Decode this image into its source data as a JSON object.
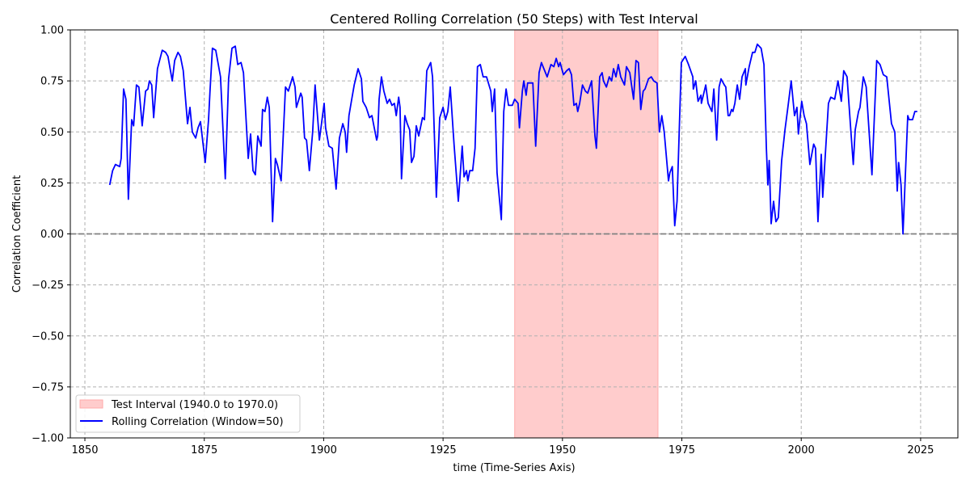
{
  "chart_data": {
    "type": "line",
    "title": "Centered Rolling Correlation (50 Steps) with Test Interval",
    "xlabel": "time (Time-Series Axis)",
    "ylabel": "Correlation Coefficient",
    "xlim": [
      1846.95,
      2032.8
    ],
    "ylim": [
      -1.0,
      1.0
    ],
    "xticks": [
      1850,
      1875,
      1900,
      1925,
      1950,
      1975,
      2000,
      2025
    ],
    "xtick_labels": [
      "1850",
      "1875",
      "1900",
      "1925",
      "1950",
      "1975",
      "2000",
      "2025"
    ],
    "yticks": [
      -1.0,
      -0.75,
      -0.5,
      -0.25,
      0.0,
      0.25,
      0.5,
      0.75,
      1.0
    ],
    "ytick_labels": [
      "−1.00",
      "−0.75",
      "−0.50",
      "−0.25",
      "0.00",
      "0.25",
      "0.50",
      "0.75",
      "1.00"
    ],
    "grid": true,
    "legend_position": "lower-left",
    "reference_line": {
      "y": 0.0,
      "color": "#808080",
      "style": "dashed"
    },
    "shaded_interval": {
      "label": "Test Interval (1940.0 to 1970.0)",
      "x_start": 1940.0,
      "x_end": 1970.0,
      "color": "#ffcccc"
    },
    "series": [
      {
        "name": "Rolling Correlation (Window=50)",
        "color": "#0000ff",
        "x": [
          1855.2,
          1855.8,
          1856.4,
          1857.3,
          1857.6,
          1858.1,
          1858.6,
          1859.1,
          1859.8,
          1860.2,
          1860.8,
          1861.3,
          1862.0,
          1862.7,
          1863.2,
          1863.5,
          1864.0,
          1864.4,
          1865.2,
          1866.2,
          1866.9,
          1867.4,
          1868.3,
          1868.8,
          1869.5,
          1870.0,
          1870.6,
          1871.5,
          1872.0,
          1872.5,
          1873.2,
          1873.7,
          1874.2,
          1875.2,
          1875.9,
          1876.2,
          1876.7,
          1877.4,
          1878.4,
          1879.4,
          1880.1,
          1880.8,
          1881.5,
          1882.0,
          1882.7,
          1883.2,
          1884.2,
          1884.7,
          1885.2,
          1885.7,
          1886.2,
          1886.9,
          1887.2,
          1887.7,
          1888.2,
          1888.6,
          1889.3,
          1889.9,
          1890.3,
          1891.1,
          1892.0,
          1892.6,
          1893.5,
          1894.0,
          1894.3,
          1895.2,
          1895.5,
          1896.0,
          1896.4,
          1897.0,
          1897.7,
          1898.2,
          1899.1,
          1900.1,
          1900.4,
          1901.1,
          1901.8,
          1902.6,
          1903.3,
          1904.0,
          1904.5,
          1904.8,
          1905.3,
          1905.8,
          1906.4,
          1907.2,
          1907.9,
          1908.2,
          1908.9,
          1909.6,
          1910.1,
          1910.6,
          1911.1,
          1911.3,
          1911.6,
          1912.1,
          1912.6,
          1913.3,
          1913.8,
          1914.3,
          1914.8,
          1915.2,
          1915.7,
          1916.0,
          1916.3,
          1917.0,
          1917.5,
          1918.0,
          1918.4,
          1918.9,
          1919.4,
          1919.9,
          1920.7,
          1921.1,
          1921.6,
          1922.4,
          1922.8,
          1923.6,
          1924.3,
          1925.0,
          1925.5,
          1926.0,
          1926.5,
          1927.3,
          1928.2,
          1929.0,
          1929.4,
          1929.9,
          1930.2,
          1930.6,
          1931.2,
          1931.7,
          1932.2,
          1932.8,
          1933.4,
          1934.1,
          1935.0,
          1935.3,
          1935.8,
          1936.3,
          1937.2,
          1937.7,
          1938.2,
          1938.7,
          1939.5,
          1940.0,
          1940.7,
          1941.0,
          1941.6,
          1941.9,
          1942.4,
          1942.7,
          1943.4,
          1943.8,
          1944.4,
          1945.1,
          1945.6,
          1946.1,
          1946.8,
          1947.6,
          1948.2,
          1948.7,
          1949.2,
          1949.5,
          1950.2,
          1950.9,
          1951.4,
          1951.9,
          1952.4,
          1952.9,
          1953.2,
          1953.6,
          1954.2,
          1954.8,
          1955.3,
          1956.1,
          1956.8,
          1957.1,
          1957.8,
          1958.3,
          1958.6,
          1959.2,
          1959.8,
          1960.3,
          1960.7,
          1961.2,
          1961.7,
          1962.2,
          1963.0,
          1963.4,
          1964.1,
          1964.9,
          1965.4,
          1965.9,
          1966.4,
          1966.9,
          1967.3,
          1968.0,
          1968.6,
          1969.1,
          1969.8,
          1970.3,
          1970.8,
          1971.3,
          1972.2,
          1972.5,
          1973.0,
          1973.5,
          1974.0,
          1974.9,
          1975.7,
          1976.4,
          1977.3,
          1977.4,
          1977.9,
          1978.4,
          1979.0,
          1979.1,
          1980.0,
          1980.5,
          1981.3,
          1981.7,
          1982.3,
          1982.8,
          1983.2,
          1983.9,
          1984.2,
          1984.7,
          1985.0,
          1985.4,
          1985.7,
          1986.1,
          1986.6,
          1987.1,
          1987.6,
          1988.3,
          1988.4,
          1989.1,
          1989.8,
          1990.3,
          1990.8,
          1991.6,
          1992.2,
          1992.7,
          1993.0,
          1993.3,
          1993.7,
          1994.2,
          1994.7,
          1995.2,
          1995.9,
          1996.6,
          1997.2,
          1997.9,
          1998.6,
          1999.1,
          1999.4,
          2000.1,
          2000.6,
          2001.1,
          2001.8,
          2002.6,
          2003.0,
          2003.5,
          2004.2,
          2004.5,
          2005.7,
          2006.2,
          2007.0,
          2007.7,
          2008.4,
          2008.9,
          2009.6,
          2010.4,
          2010.9,
          2011.3,
          2012.0,
          2012.3,
          2013.0,
          2013.6,
          2013.8,
          2014.8,
          2015.8,
          2016.5,
          2017.2,
          2017.9,
          2018.9,
          2019.6,
          2020.1,
          2020.4,
          2020.9,
          2021.3,
          2022.3,
          2022.6,
          2023.3,
          2023.8,
          2024.3
        ],
        "y": [
          0.24,
          0.31,
          0.34,
          0.33,
          0.37,
          0.71,
          0.66,
          0.17,
          0.56,
          0.53,
          0.73,
          0.72,
          0.53,
          0.7,
          0.71,
          0.75,
          0.73,
          0.57,
          0.81,
          0.9,
          0.89,
          0.87,
          0.75,
          0.85,
          0.89,
          0.87,
          0.8,
          0.54,
          0.62,
          0.5,
          0.47,
          0.52,
          0.55,
          0.35,
          0.56,
          0.7,
          0.91,
          0.9,
          0.77,
          0.27,
          0.76,
          0.91,
          0.92,
          0.83,
          0.84,
          0.79,
          0.37,
          0.49,
          0.31,
          0.29,
          0.48,
          0.43,
          0.61,
          0.6,
          0.67,
          0.62,
          0.06,
          0.37,
          0.34,
          0.26,
          0.72,
          0.7,
          0.77,
          0.72,
          0.62,
          0.69,
          0.67,
          0.47,
          0.46,
          0.31,
          0.5,
          0.73,
          0.46,
          0.64,
          0.52,
          0.43,
          0.42,
          0.22,
          0.47,
          0.54,
          0.5,
          0.4,
          0.58,
          0.65,
          0.73,
          0.81,
          0.76,
          0.65,
          0.62,
          0.57,
          0.58,
          0.52,
          0.46,
          0.48,
          0.66,
          0.77,
          0.7,
          0.64,
          0.66,
          0.63,
          0.64,
          0.58,
          0.67,
          0.62,
          0.27,
          0.58,
          0.54,
          0.51,
          0.35,
          0.38,
          0.53,
          0.48,
          0.57,
          0.56,
          0.8,
          0.84,
          0.77,
          0.18,
          0.57,
          0.62,
          0.56,
          0.6,
          0.72,
          0.44,
          0.16,
          0.43,
          0.28,
          0.31,
          0.26,
          0.31,
          0.31,
          0.42,
          0.82,
          0.83,
          0.77,
          0.77,
          0.7,
          0.6,
          0.71,
          0.3,
          0.07,
          0.6,
          0.71,
          0.63,
          0.63,
          0.66,
          0.64,
          0.52,
          0.7,
          0.75,
          0.68,
          0.74,
          0.74,
          0.74,
          0.43,
          0.79,
          0.84,
          0.81,
          0.77,
          0.83,
          0.82,
          0.86,
          0.82,
          0.84,
          0.78,
          0.8,
          0.81,
          0.78,
          0.63,
          0.64,
          0.6,
          0.64,
          0.73,
          0.7,
          0.69,
          0.75,
          0.48,
          0.42,
          0.77,
          0.79,
          0.75,
          0.72,
          0.77,
          0.75,
          0.81,
          0.77,
          0.83,
          0.77,
          0.73,
          0.82,
          0.79,
          0.66,
          0.85,
          0.84,
          0.61,
          0.7,
          0.71,
          0.76,
          0.77,
          0.75,
          0.74,
          0.5,
          0.58,
          0.5,
          0.26,
          0.3,
          0.33,
          0.04,
          0.16,
          0.84,
          0.87,
          0.83,
          0.77,
          0.71,
          0.75,
          0.65,
          0.68,
          0.64,
          0.73,
          0.64,
          0.6,
          0.71,
          0.46,
          0.72,
          0.76,
          0.73,
          0.72,
          0.58,
          0.58,
          0.61,
          0.6,
          0.64,
          0.73,
          0.66,
          0.77,
          0.81,
          0.73,
          0.82,
          0.89,
          0.89,
          0.93,
          0.91,
          0.83,
          0.42,
          0.24,
          0.36,
          0.05,
          0.16,
          0.06,
          0.08,
          0.36,
          0.51,
          0.62,
          0.75,
          0.58,
          0.62,
          0.49,
          0.65,
          0.58,
          0.54,
          0.34,
          0.44,
          0.42,
          0.06,
          0.39,
          0.18,
          0.64,
          0.67,
          0.66,
          0.75,
          0.65,
          0.8,
          0.77,
          0.5,
          0.34,
          0.51,
          0.6,
          0.62,
          0.77,
          0.72,
          0.65,
          0.29,
          0.85,
          0.83,
          0.78,
          0.77,
          0.54,
          0.5,
          0.21,
          0.35,
          0.24,
          0.0,
          0.58,
          0.56,
          0.56,
          0.6,
          0.6
        ]
      }
    ]
  }
}
